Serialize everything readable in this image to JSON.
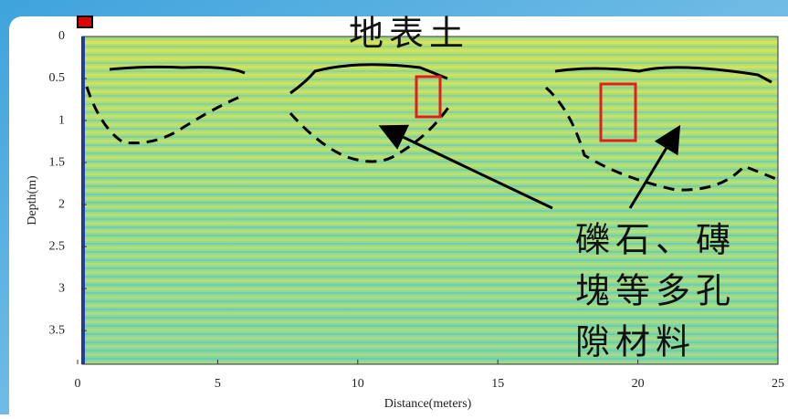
{
  "chart_data": {
    "type": "radargram",
    "xlabel": "Distance(meters)",
    "ylabel": "Depth(m)",
    "xlim": [
      0,
      25
    ],
    "ylim": [
      0,
      3.9
    ],
    "y_inverted": true,
    "xticks": [
      0,
      5,
      10,
      15,
      20,
      25
    ],
    "yticks": [
      0,
      0.5,
      1,
      1.5,
      2,
      2.5,
      3,
      3.5
    ],
    "annotations": [
      "地表土",
      "礫石、磚",
      "塊等多孔",
      "隙材料"
    ]
  }
}
